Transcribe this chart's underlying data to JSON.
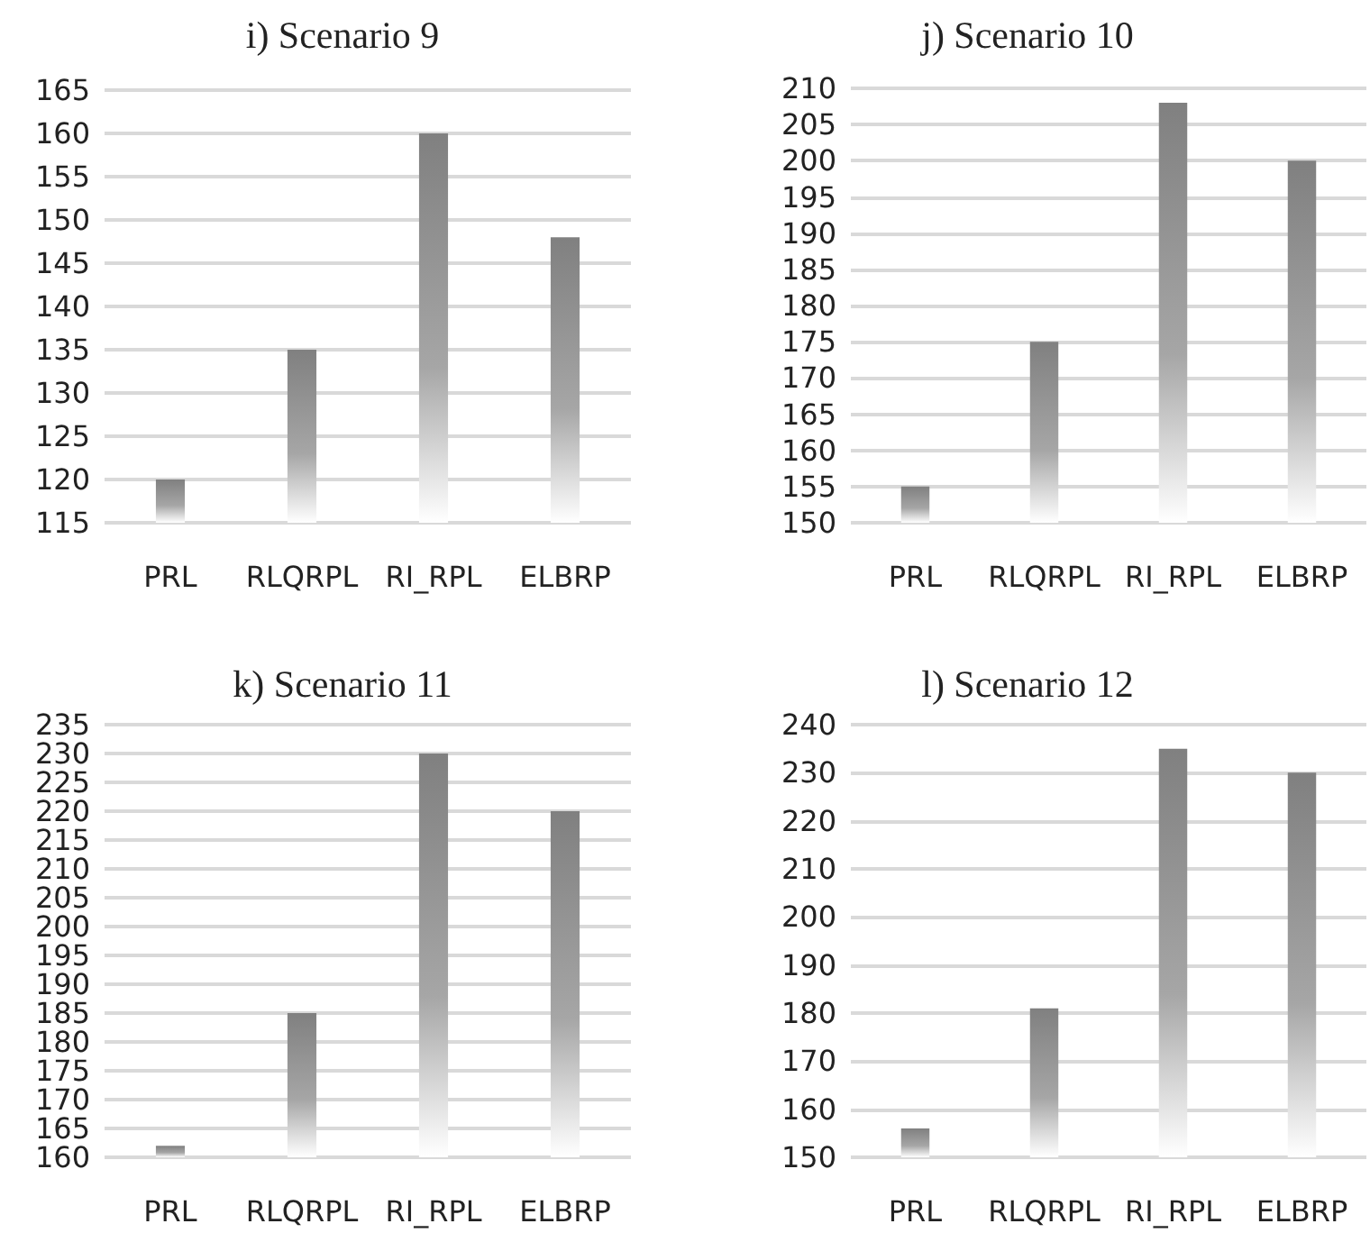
{
  "chart_data": [
    {
      "type": "bar",
      "title": "i) Scenario 9",
      "categories": [
        "PRL",
        "RLQRPL",
        "RI_RPL",
        "ELBRP"
      ],
      "values": [
        120,
        135,
        160,
        148
      ],
      "color": "#808080",
      "ylim": [
        115,
        165
      ],
      "yticks": [
        115,
        120,
        125,
        130,
        135,
        140,
        145,
        150,
        155,
        160,
        165
      ],
      "grid": "y"
    },
    {
      "type": "bar",
      "title": "j) Scenario 10",
      "categories": [
        "PRL",
        "RLQRPL",
        "RI_RPL",
        "ELBRP"
      ],
      "values": [
        155,
        175,
        208,
        200
      ],
      "color": "#808080",
      "ylim": [
        150,
        210
      ],
      "yticks": [
        150,
        155,
        160,
        165,
        170,
        175,
        180,
        185,
        190,
        195,
        200,
        205,
        210
      ],
      "grid": "y"
    },
    {
      "type": "bar",
      "title": "k) Scenario 11",
      "categories": [
        "PRL",
        "RLQRPL",
        "RI_RPL",
        "ELBRP"
      ],
      "values": [
        162,
        185,
        230,
        220
      ],
      "color": "#808080",
      "ylim": [
        160,
        235
      ],
      "yticks": [
        160,
        165,
        170,
        175,
        180,
        185,
        190,
        195,
        200,
        205,
        210,
        215,
        220,
        225,
        230,
        235
      ],
      "grid": "y"
    },
    {
      "type": "bar",
      "title": "l) Scenario 12",
      "categories": [
        "PRL",
        "RLQRPL",
        "RI_RPL",
        "ELBRP"
      ],
      "values": [
        156,
        181,
        235,
        230
      ],
      "color": "#808080",
      "ylim": [
        150,
        240
      ],
      "yticks": [
        150,
        160,
        170,
        180,
        190,
        200,
        210,
        220,
        230,
        240
      ],
      "grid": "y"
    }
  ]
}
